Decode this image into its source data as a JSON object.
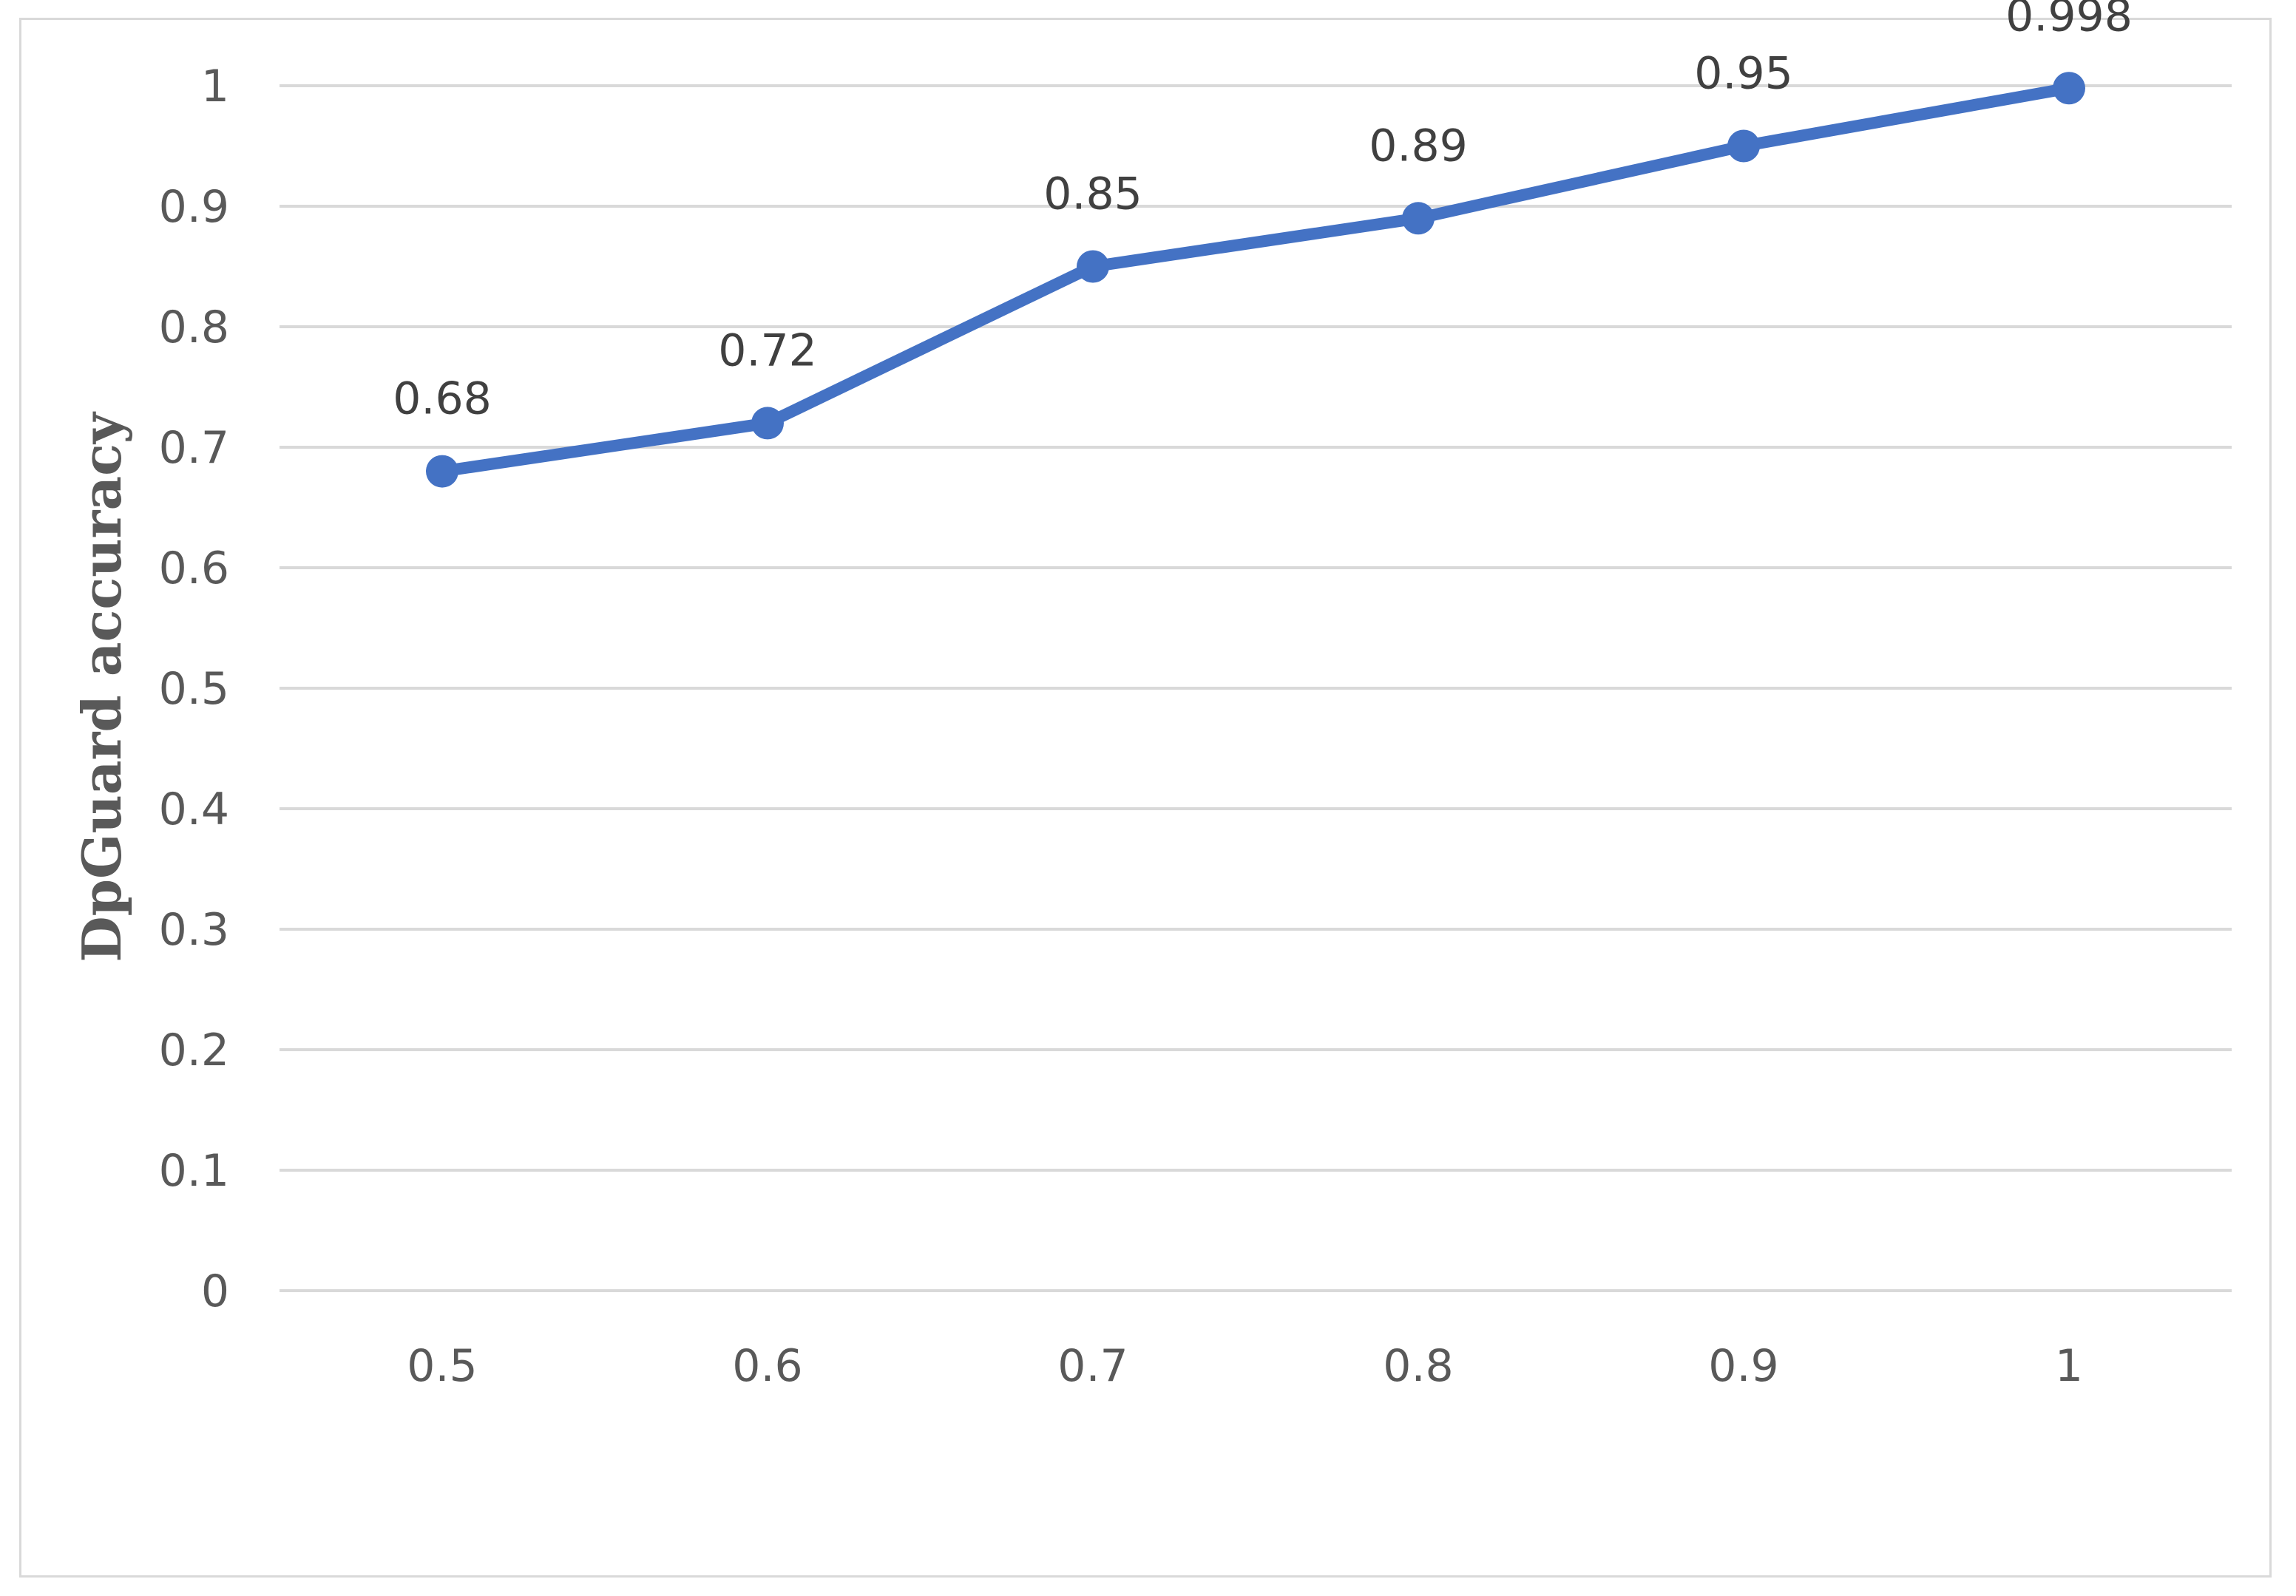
{
  "chart_data": {
    "type": "line",
    "title": "",
    "xlabel": "",
    "ylabel": "DpGuard accuracy",
    "x": [
      "0.5",
      "0.6",
      "0.7",
      "0.8",
      "0.9",
      "1"
    ],
    "series": [
      {
        "values": [
          0.68,
          0.72,
          0.85,
          0.89,
          0.95,
          0.998
        ],
        "data_labels": [
          "0.68",
          "0.72",
          "0.85",
          "0.89",
          "0.95",
          "0.998"
        ],
        "color": "#4472c4"
      }
    ],
    "ylim": [
      0,
      1
    ],
    "yticks": [
      "0",
      "0.1",
      "0.2",
      "0.3",
      "0.4",
      "0.5",
      "0.6",
      "0.7",
      "0.8",
      "0.9",
      "1"
    ],
    "grid": "horizontal",
    "gridline_color": "#d9d9d9",
    "legend": "none"
  }
}
